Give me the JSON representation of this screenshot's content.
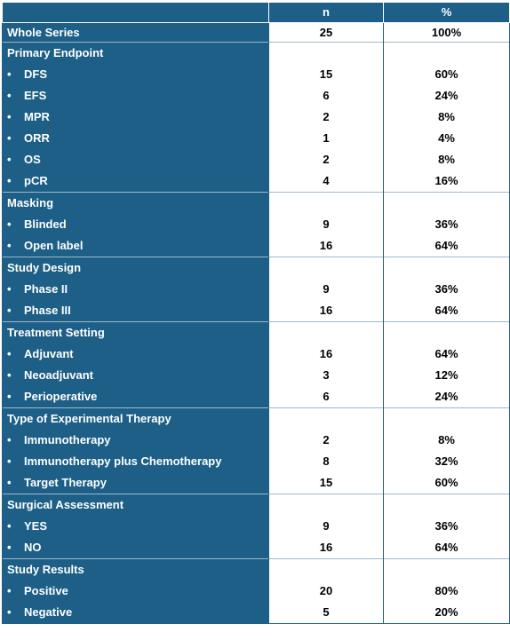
{
  "table": {
    "headers": [
      "",
      "n",
      "%"
    ],
    "whole_series": {
      "label": "Whole Series",
      "n": "25",
      "pct": "100%"
    },
    "bullet": "•",
    "sections": [
      {
        "title": "Primary Endpoint",
        "rows": [
          {
            "label": "DFS",
            "n": "15",
            "pct": "60%"
          },
          {
            "label": "EFS",
            "n": "6",
            "pct": "24%"
          },
          {
            "label": "MPR",
            "n": "2",
            "pct": "8%"
          },
          {
            "label": "ORR",
            "n": "1",
            "pct": "4%"
          },
          {
            "label": "OS",
            "n": "2",
            "pct": "8%"
          },
          {
            "label": "pCR",
            "n": "4",
            "pct": "16%"
          }
        ]
      },
      {
        "title": "Masking",
        "rows": [
          {
            "label": "Blinded",
            "n": "9",
            "pct": "36%"
          },
          {
            "label": "Open label",
            "n": "16",
            "pct": "64%"
          }
        ]
      },
      {
        "title": "Study Design",
        "rows": [
          {
            "label": "Phase II",
            "n": "9",
            "pct": "36%"
          },
          {
            "label": "Phase III",
            "n": "16",
            "pct": "64%"
          }
        ]
      },
      {
        "title": "Treatment Setting",
        "rows": [
          {
            "label": "Adjuvant",
            "n": "16",
            "pct": "64%"
          },
          {
            "label": "Neoadjuvant",
            "n": "3",
            "pct": "12%"
          },
          {
            "label": "Perioperative",
            "n": "6",
            "pct": "24%"
          }
        ]
      },
      {
        "title": "Type of Experimental Therapy",
        "rows": [
          {
            "label": "Immunotherapy",
            "n": "2",
            "pct": "8%"
          },
          {
            "label": "Immunotherapy plus Chemotherapy",
            "n": "8",
            "pct": "32%"
          },
          {
            "label": "Target Therapy",
            "n": "15",
            "pct": "60%"
          }
        ]
      },
      {
        "title": "Surgical Assessment",
        "rows": [
          {
            "label": "YES",
            "n": "9",
            "pct": "36%"
          },
          {
            "label": "NO",
            "n": "16",
            "pct": "64%"
          }
        ]
      },
      {
        "title": "Study Results",
        "rows": [
          {
            "label": "Positive",
            "n": "20",
            "pct": "80%"
          },
          {
            "label": "Negative",
            "n": "5",
            "pct": "20%"
          }
        ]
      }
    ]
  },
  "colors": {
    "header_bg": "#1d5f86",
    "header_text": "#ffffff",
    "value_text": "#000000"
  }
}
